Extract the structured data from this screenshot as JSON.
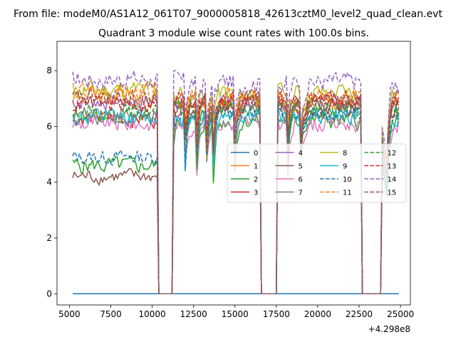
{
  "suptitle": "From file: modeM0/AS1A12_061T07_9000005818_42613cztM0_level2_quad_clean.evt",
  "chart_data": {
    "type": "line",
    "title": "Quadrant 3 module wise count rates with 100.0s bins.",
    "xlabel": "",
    "ylabel": "",
    "x_offset_label": "+4.298e8",
    "xlim": [
      4250,
      25600
    ],
    "ylim": [
      -0.4,
      9.05
    ],
    "xticks": [
      5000,
      7500,
      10000,
      12500,
      15000,
      17500,
      20000,
      22500,
      25000
    ],
    "xtick_labels": [
      "5000",
      "7500",
      "10000",
      "12500",
      "15000",
      "17500",
      "20000",
      "22500",
      "25000"
    ],
    "yticks": [
      0,
      2,
      4,
      6,
      8
    ],
    "ytick_labels": [
      "0",
      "2",
      "4",
      "6",
      "8"
    ],
    "x_start": 5200,
    "x_end": 24900,
    "x_step": 100,
    "gaps": [
      [
        10300,
        11300
      ],
      [
        16500,
        17600
      ],
      [
        22600,
        23900
      ]
    ],
    "legend": {
      "placement": "center-right",
      "ncol": 4
    },
    "series": [
      {
        "name": "0",
        "color": "#1f77b4",
        "dash": "solid",
        "level": 0.0,
        "level_late": 0.0,
        "noise": 0.0
      },
      {
        "name": "1",
        "color": "#ff7f0e",
        "dash": "solid",
        "level": 7.1,
        "level_late": 6.9,
        "noise": 0.35
      },
      {
        "name": "2",
        "color": "#2ca02c",
        "dash": "solid",
        "level": 4.6,
        "level_late": 6.2,
        "noise": 0.3
      },
      {
        "name": "3",
        "color": "#d62728",
        "dash": "solid",
        "level": 6.3,
        "level_late": 6.7,
        "noise": 0.3
      },
      {
        "name": "4",
        "color": "#9467bd",
        "dash": "solid",
        "level": 6.9,
        "level_late": 7.0,
        "noise": 0.3
      },
      {
        "name": "5",
        "color": "#8c564b",
        "dash": "solid",
        "level": 4.2,
        "level_late": 6.8,
        "noise": 0.25
      },
      {
        "name": "6",
        "color": "#e377c2",
        "dash": "solid",
        "level": 6.1,
        "level_late": 6.1,
        "noise": 0.3
      },
      {
        "name": "7",
        "color": "#7f7f7f",
        "dash": "solid",
        "level": 6.4,
        "level_late": 6.6,
        "noise": 0.3
      },
      {
        "name": "8",
        "color": "#bcbd22",
        "dash": "solid",
        "level": 7.3,
        "level_late": 7.2,
        "noise": 0.35
      },
      {
        "name": "9",
        "color": "#17becf",
        "dash": "solid",
        "level": 6.3,
        "level_late": 6.4,
        "noise": 0.3
      },
      {
        "name": "10",
        "color": "#1f77b4",
        "dash": "dashed",
        "level": 4.9,
        "level_late": 6.5,
        "noise": 0.25
      },
      {
        "name": "11",
        "color": "#ff7f0e",
        "dash": "dashed",
        "level": 7.2,
        "level_late": 7.0,
        "noise": 0.35
      },
      {
        "name": "12",
        "color": "#2ca02c",
        "dash": "dashed",
        "level": 6.5,
        "level_late": 6.6,
        "noise": 0.3
      },
      {
        "name": "13",
        "color": "#d62728",
        "dash": "dashed",
        "level": 6.8,
        "level_late": 7.0,
        "noise": 0.3
      },
      {
        "name": "14",
        "color": "#9467bd",
        "dash": "dashed",
        "level": 7.7,
        "level_late": 7.6,
        "noise": 0.35
      },
      {
        "name": "15",
        "color": "#8c564b",
        "dash": "dashed",
        "level": 7.0,
        "level_late": 6.9,
        "noise": 0.3
      }
    ]
  }
}
